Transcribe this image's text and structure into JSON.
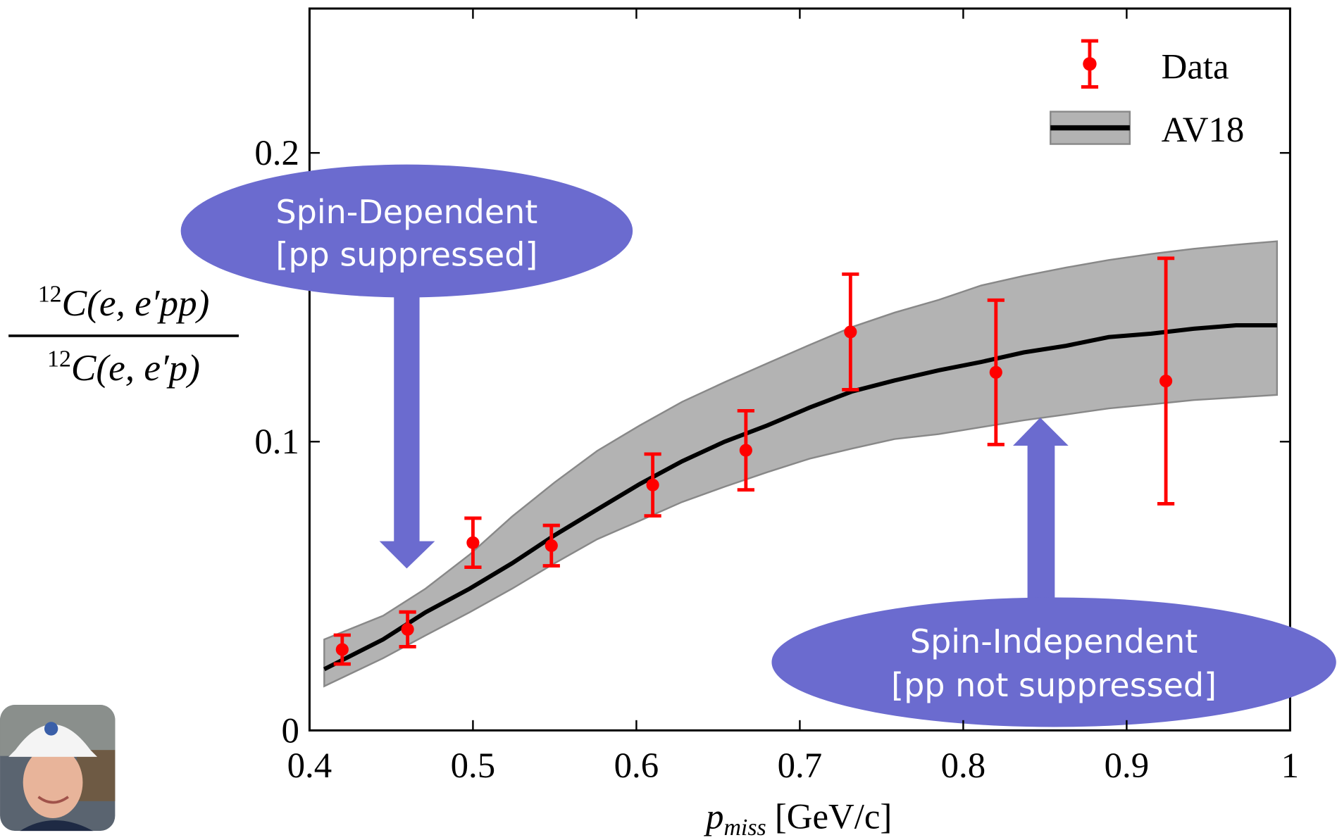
{
  "chart_data": {
    "type": "errorbar",
    "x_label": {
      "main": "p",
      "sub": "miss",
      "unit": "[GeV/c]"
    },
    "y_label": {
      "numerator": {
        "sup": "12",
        "text": "C(e, e′pp)"
      },
      "denominator": {
        "sup": "12",
        "text": "C(e, e′p)"
      }
    },
    "xlim": [
      0.4,
      1.0
    ],
    "xticks": [
      0.4,
      0.5,
      0.6,
      0.7,
      0.8,
      0.9,
      1
    ],
    "ylim": [
      0,
      0.25
    ],
    "yticks": [
      0,
      0.1,
      0.2
    ],
    "legend": "upper right",
    "series": [
      {
        "name": "Data",
        "color": "#ff0000",
        "kind": "errorbar",
        "x": [
          0.42,
          0.46,
          0.5,
          0.548,
          0.61,
          0.667,
          0.731,
          0.82,
          0.924
        ],
        "values": [
          0.028,
          0.035,
          0.065,
          0.064,
          0.085,
          0.097,
          0.138,
          0.124,
          0.121
        ],
        "errors": [
          0.005,
          0.006,
          0.0085,
          0.007,
          0.0107,
          0.0137,
          0.02,
          0.025,
          0.0425
        ]
      },
      {
        "name": "AV18",
        "color": "#000000",
        "band_color": "#b3b3b3",
        "kind": "band",
        "x": [
          0.409,
          0.445,
          0.471,
          0.498,
          0.524,
          0.55,
          0.576,
          0.602,
          0.628,
          0.654,
          0.68,
          0.706,
          0.732,
          0.758,
          0.785,
          0.811,
          0.837,
          0.863,
          0.889,
          0.915,
          0.941,
          0.967,
          0.992
        ],
        "values": [
          0.0212,
          0.0315,
          0.0409,
          0.0491,
          0.0579,
          0.0676,
          0.0765,
          0.0853,
          0.0932,
          0.1,
          0.1056,
          0.1118,
          0.1174,
          0.1212,
          0.1247,
          0.1276,
          0.1309,
          0.1332,
          0.1362,
          0.1374,
          0.1391,
          0.1403,
          0.1403
        ],
        "upper": [
          0.0315,
          0.0397,
          0.0491,
          0.0609,
          0.0741,
          0.0859,
          0.0968,
          0.1056,
          0.1138,
          0.1206,
          0.1271,
          0.1335,
          0.1397,
          0.1447,
          0.1491,
          0.1541,
          0.1574,
          0.1603,
          0.1629,
          0.165,
          0.1668,
          0.1682,
          0.1694
        ],
        "lower": [
          0.0153,
          0.025,
          0.0329,
          0.0409,
          0.0491,
          0.0579,
          0.0662,
          0.0726,
          0.0791,
          0.0844,
          0.0894,
          0.0941,
          0.0976,
          0.1009,
          0.1026,
          0.105,
          0.1074,
          0.1094,
          0.1115,
          0.1129,
          0.1144,
          0.1153,
          0.1162
        ]
      }
    ],
    "annotations": [
      {
        "lines": [
          "Spin-Dependent",
          "[pp suppressed]"
        ]
      },
      {
        "lines": [
          "Spin-Independent",
          "[pp not suppressed]"
        ]
      }
    ]
  }
}
